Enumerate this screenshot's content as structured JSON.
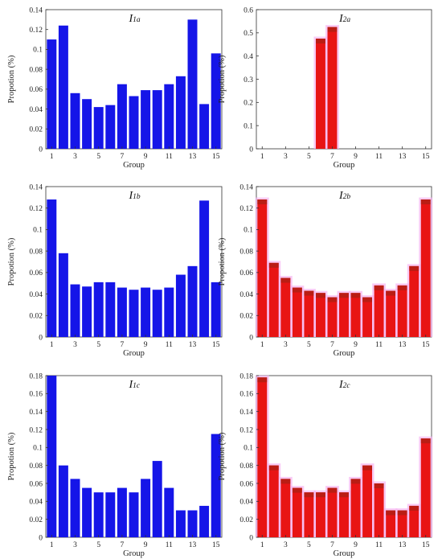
{
  "chart_data": [
    {
      "type": "bar",
      "title_main": "I",
      "title_sub": "1a",
      "xlabel": "Group",
      "ylabel": "Propotion (%)",
      "ylim": [
        0,
        0.14
      ],
      "yticks": [
        "0",
        "0.02",
        "0.04",
        "0.06",
        "0.08",
        "0.1",
        "0.12",
        "0.14"
      ],
      "xticks": [
        "1",
        "3",
        "5",
        "7",
        "9",
        "11",
        "13",
        "15"
      ],
      "bar_color": "#1515e8",
      "categories": [
        1,
        2,
        3,
        4,
        5,
        6,
        7,
        8,
        9,
        10,
        11,
        12,
        13,
        14,
        15
      ],
      "values": [
        0.11,
        0.124,
        0.056,
        0.05,
        0.042,
        0.044,
        0.065,
        0.053,
        0.059,
        0.059,
        0.065,
        0.073,
        0.13,
        0.045,
        0.096
      ]
    },
    {
      "type": "bar",
      "title_main": "I",
      "title_sub": "2a",
      "xlabel": "Group",
      "ylabel": "Propotion (%)",
      "ylim": [
        0,
        0.6
      ],
      "yticks": [
        "0",
        "0.1",
        "0.2",
        "0.3",
        "0.4",
        "0.5",
        "0.6"
      ],
      "xticks": [
        "1",
        "3",
        "5",
        "7",
        "9",
        "11",
        "13",
        "15"
      ],
      "bar_color": "#e81414",
      "categories": [
        1,
        2,
        3,
        4,
        5,
        6,
        7,
        8,
        9,
        10,
        11,
        12,
        13,
        14,
        15
      ],
      "values": [
        0,
        0,
        0,
        0,
        0,
        0.475,
        0.525,
        0,
        0,
        0,
        0,
        0,
        0,
        0,
        0
      ]
    },
    {
      "type": "bar",
      "title_main": "I",
      "title_sub": "1b",
      "xlabel": "Group",
      "ylabel": "Propotion (%)",
      "ylim": [
        0,
        0.14
      ],
      "yticks": [
        "0",
        "0.02",
        "0.04",
        "0.06",
        "0.08",
        "0.1",
        "0.12",
        "0.14"
      ],
      "xticks": [
        "1",
        "3",
        "5",
        "7",
        "9",
        "11",
        "13",
        "15"
      ],
      "bar_color": "#1515e8",
      "categories": [
        1,
        2,
        3,
        4,
        5,
        6,
        7,
        8,
        9,
        10,
        11,
        12,
        13,
        14,
        15
      ],
      "values": [
        0.128,
        0.078,
        0.049,
        0.047,
        0.051,
        0.051,
        0.046,
        0.044,
        0.046,
        0.044,
        0.046,
        0.058,
        0.066,
        0.127,
        0.051
      ]
    },
    {
      "type": "bar",
      "title_main": "I",
      "title_sub": "2b",
      "xlabel": "Group",
      "ylabel": "Propotion (%)",
      "ylim": [
        0,
        0.14
      ],
      "yticks": [
        "0",
        "0.02",
        "0.04",
        "0.06",
        "0.08",
        "0.1",
        "0.12",
        "0.14"
      ],
      "xticks": [
        "1",
        "3",
        "5",
        "7",
        "9",
        "11",
        "13",
        "15"
      ],
      "bar_color": "#e81414",
      "categories": [
        1,
        2,
        3,
        4,
        5,
        6,
        7,
        8,
        9,
        10,
        11,
        12,
        13,
        14,
        15
      ],
      "values": [
        0.128,
        0.069,
        0.055,
        0.046,
        0.043,
        0.041,
        0.037,
        0.041,
        0.041,
        0.037,
        0.048,
        0.043,
        0.048,
        0.066,
        0.128
      ]
    },
    {
      "type": "bar",
      "title_main": "I",
      "title_sub": "1c",
      "xlabel": "Group",
      "ylabel": "Propotion (%)",
      "ylim": [
        0,
        0.18
      ],
      "yticks": [
        "0",
        "0.02",
        "0.04",
        "0.06",
        "0.08",
        "0.1",
        "0.12",
        "0.14",
        "0.16",
        "0.18"
      ],
      "xticks": [
        "1",
        "3",
        "5",
        "7",
        "9",
        "11",
        "13",
        "15"
      ],
      "bar_color": "#1515e8",
      "categories": [
        1,
        2,
        3,
        4,
        5,
        6,
        7,
        8,
        9,
        10,
        11,
        12,
        13,
        14,
        15
      ],
      "values": [
        0.18,
        0.08,
        0.065,
        0.055,
        0.05,
        0.05,
        0.055,
        0.05,
        0.065,
        0.085,
        0.055,
        0.03,
        0.03,
        0.035,
        0.115
      ]
    },
    {
      "type": "bar",
      "title_main": "I",
      "title_sub": "2c",
      "xlabel": "Group",
      "ylabel": "Propotion (%)",
      "ylim": [
        0,
        0.18
      ],
      "yticks": [
        "0",
        "0.02",
        "0.04",
        "0.06",
        "0.08",
        "0.1",
        "0.12",
        "0.14",
        "0.16",
        "0.18"
      ],
      "xticks": [
        "1",
        "3",
        "5",
        "7",
        "9",
        "11",
        "13",
        "15"
      ],
      "bar_color": "#e81414",
      "categories": [
        1,
        2,
        3,
        4,
        5,
        6,
        7,
        8,
        9,
        10,
        11,
        12,
        13,
        14,
        15
      ],
      "values": [
        0.178,
        0.08,
        0.065,
        0.055,
        0.05,
        0.05,
        0.055,
        0.05,
        0.065,
        0.08,
        0.06,
        0.03,
        0.03,
        0.035,
        0.11
      ]
    }
  ]
}
